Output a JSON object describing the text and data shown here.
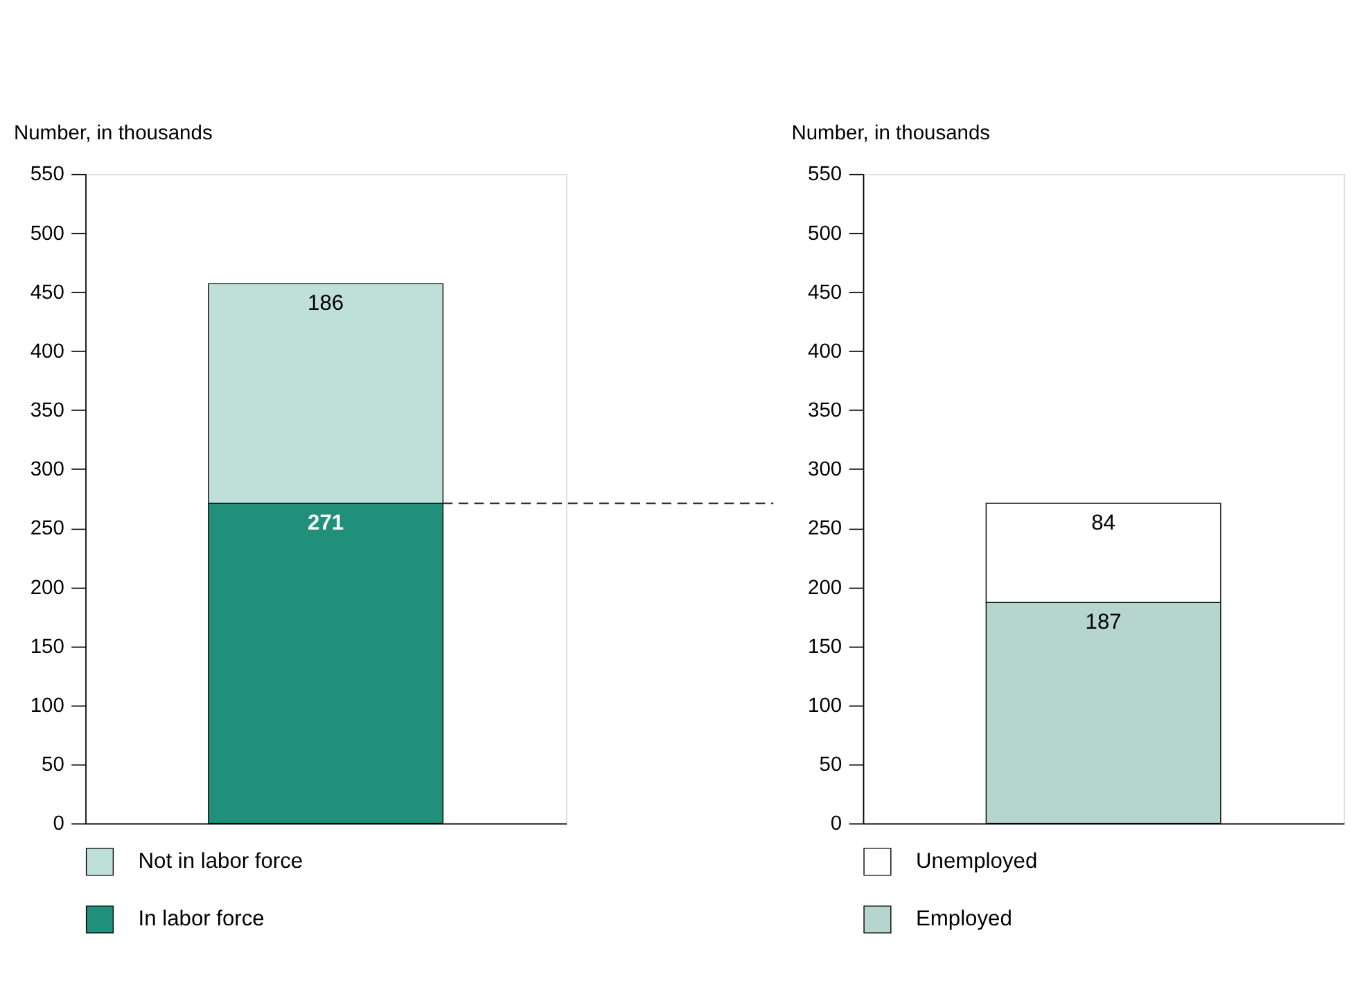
{
  "chart_data": [
    {
      "type": "bar",
      "stacked": true,
      "ylabel": "Number, in thousands",
      "categories": [
        null
      ],
      "ylim": [
        0,
        550
      ],
      "yticks": [
        0,
        50,
        100,
        150,
        200,
        250,
        300,
        350,
        400,
        450,
        500,
        550
      ],
      "grid": false,
      "legend": "bottom",
      "data_labels": true,
      "series": [
        {
          "name": "In labor force",
          "color": "#21907a",
          "values": [
            271
          ]
        },
        {
          "name": "Not in labor force",
          "color": "#bfe0d8",
          "values": [
            186
          ]
        }
      ],
      "ref_lines": [
        {
          "axis": "y",
          "value": 271,
          "line_style": "dashed",
          "color": "#333333"
        }
      ]
    },
    {
      "type": "bar",
      "stacked": true,
      "ylabel": "Number, in thousands",
      "categories": [
        null
      ],
      "ylim": [
        0,
        550
      ],
      "yticks": [
        0,
        50,
        100,
        150,
        200,
        250,
        300,
        350,
        400,
        450,
        500,
        550
      ],
      "grid": false,
      "legend": "bottom",
      "data_labels": true,
      "series": [
        {
          "name": "Employed",
          "color": "#b7d5cf",
          "values": [
            187
          ]
        },
        {
          "name": "Unemployed",
          "color": "#ffffff",
          "values": [
            84
          ]
        }
      ]
    }
  ]
}
